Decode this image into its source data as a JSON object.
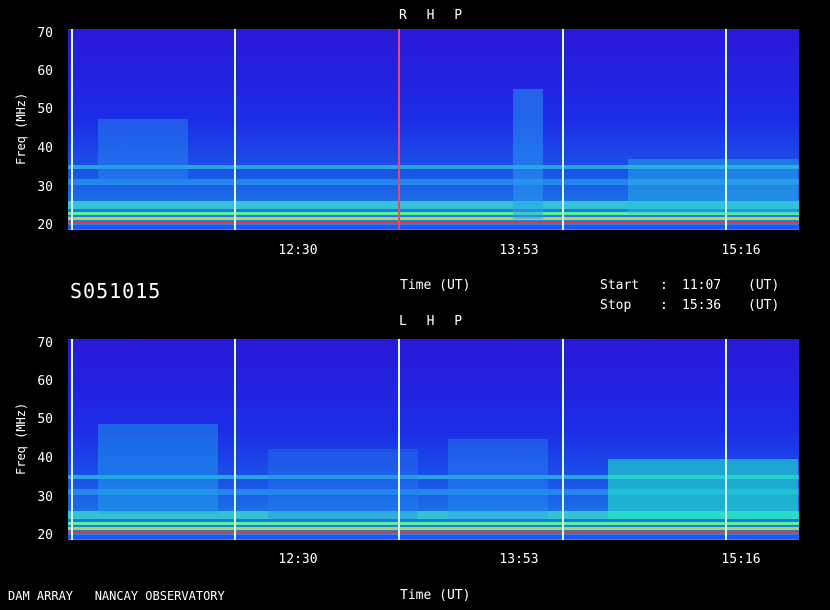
{
  "header": {
    "ident": "S051015",
    "time_label": "Time (UT)",
    "start_label": "Start",
    "stop_label": "Stop",
    "colon": ":",
    "start_value": "11:07",
    "stop_value": "15:36",
    "unit": "(UT)"
  },
  "footer": {
    "observatory": "DAM ARRAY   NANCAY OBSERVATORY",
    "time_label": "Time (UT)"
  },
  "colors": {
    "background": "#000000",
    "base": "#1a16e0",
    "vertical_lines": "#d8fff0"
  },
  "chart_data": [
    {
      "type": "heatmap",
      "title": "R H P",
      "ylabel": "Freq (MHz)",
      "xlabel": "Time (UT)",
      "ylim": [
        20,
        70
      ],
      "yticks": [
        "70",
        "60",
        "50",
        "40",
        "30",
        "20"
      ],
      "xlim": [
        "11:07",
        "15:36"
      ],
      "xticks": [
        "12:30",
        "13:53",
        "15:16"
      ],
      "colormap": "blue-cyan-green-yellow-red"
    },
    {
      "type": "heatmap",
      "title": "L H P",
      "ylabel": "Freq (MHz)",
      "xlabel": "Time (UT)",
      "ylim": [
        20,
        70
      ],
      "yticks": [
        "70",
        "60",
        "50",
        "40",
        "30",
        "20"
      ],
      "xlim": [
        "11:07",
        "15:36"
      ],
      "xticks": [
        "12:30",
        "13:53",
        "15:16"
      ],
      "colormap": "blue-cyan-green-yellow-red"
    }
  ]
}
